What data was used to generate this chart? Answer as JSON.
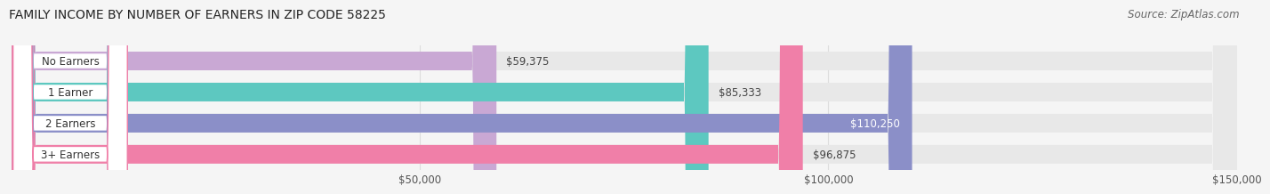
{
  "title": "FAMILY INCOME BY NUMBER OF EARNERS IN ZIP CODE 58225",
  "source": "Source: ZipAtlas.com",
  "categories": [
    "No Earners",
    "1 Earner",
    "2 Earners",
    "3+ Earners"
  ],
  "values": [
    59375,
    85333,
    110250,
    96875
  ],
  "bar_colors": [
    "#c9a8d4",
    "#5dc8c0",
    "#8b8fc8",
    "#f07fa8"
  ],
  "track_color": "#e8e8e8",
  "label_bg": "#ffffff",
  "label_border_colors": [
    "#c9a8d4",
    "#5dc8c0",
    "#8b8fc8",
    "#f07fa8"
  ],
  "value_labels": [
    "$59,375",
    "$85,333",
    "$110,250",
    "$96,875"
  ],
  "value_inside": [
    false,
    false,
    true,
    false
  ],
  "xlim": [
    0,
    150000
  ],
  "xticks": [
    50000,
    100000,
    150000
  ],
  "xtick_labels": [
    "$50,000",
    "$100,000",
    "$150,000"
  ],
  "title_fontsize": 10,
  "source_fontsize": 8.5,
  "bar_height": 0.6,
  "background_color": "#f5f5f5",
  "grid_color": "#dddddd"
}
